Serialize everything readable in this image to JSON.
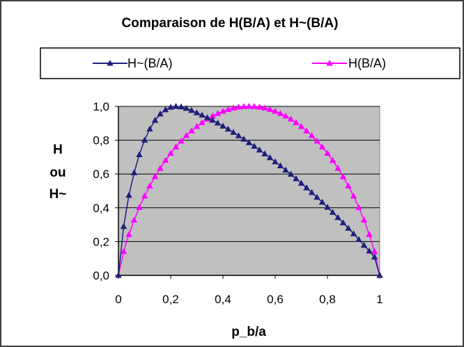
{
  "chart_data": {
    "type": "line",
    "title": "Comparaison de H(B/A) et H~(B/A)",
    "xlabel": "p_b/a",
    "ylabel_lines": [
      "H",
      "ou",
      "H~"
    ],
    "xlim": [
      0,
      1
    ],
    "ylim": [
      0,
      1
    ],
    "x_ticks": [
      "0",
      "0,2",
      "0,4",
      "0,6",
      "0,8",
      "1"
    ],
    "x_tick_values": [
      0,
      0.2,
      0.4,
      0.6,
      0.8,
      1
    ],
    "y_ticks": [
      "0,0",
      "0,2",
      "0,4",
      "0,6",
      "0,8",
      "1,0"
    ],
    "y_tick_values": [
      0,
      0.2,
      0.4,
      0.6,
      0.8,
      1.0
    ],
    "grid": "horizontal",
    "plot_background": "#c0c0c0",
    "legend_position": "top",
    "marker": "triangle",
    "x": [
      0,
      0.02,
      0.04,
      0.06,
      0.08,
      0.1,
      0.12,
      0.14,
      0.16,
      0.18,
      0.2,
      0.22,
      0.24,
      0.26,
      0.28,
      0.3,
      0.32,
      0.34,
      0.36,
      0.38,
      0.4,
      0.42,
      0.44,
      0.46,
      0.48,
      0.5,
      0.52,
      0.54,
      0.56,
      0.58,
      0.6,
      0.62,
      0.64,
      0.66,
      0.68,
      0.7,
      0.72,
      0.74,
      0.76,
      0.78,
      0.8,
      0.82,
      0.84,
      0.86,
      0.88,
      0.9,
      0.92,
      0.94,
      0.96,
      0.98,
      1.0
    ],
    "series": [
      {
        "name": "H~(B/A)",
        "color": "#1f1f7a",
        "values": [
          0,
          0.289,
          0.474,
          0.607,
          0.714,
          0.8,
          0.866,
          0.917,
          0.955,
          0.98,
          0.995,
          1.0,
          0.997,
          0.988,
          0.976,
          0.962,
          0.948,
          0.933,
          0.918,
          0.901,
          0.883,
          0.865,
          0.846,
          0.826,
          0.806,
          0.785,
          0.764,
          0.742,
          0.719,
          0.696,
          0.672,
          0.648,
          0.623,
          0.598,
          0.572,
          0.545,
          0.518,
          0.49,
          0.462,
          0.433,
          0.403,
          0.373,
          0.342,
          0.311,
          0.279,
          0.246,
          0.212,
          0.178,
          0.144,
          0.108,
          0
        ]
      },
      {
        "name": "H(B/A)",
        "color": "#ff00ff",
        "values": [
          0,
          0.141,
          0.242,
          0.327,
          0.402,
          0.469,
          0.529,
          0.584,
          0.634,
          0.68,
          0.722,
          0.76,
          0.795,
          0.827,
          0.855,
          0.881,
          0.904,
          0.925,
          0.943,
          0.958,
          0.971,
          0.982,
          0.99,
          0.996,
          0.999,
          1.0,
          0.999,
          0.996,
          0.99,
          0.982,
          0.971,
          0.958,
          0.943,
          0.925,
          0.904,
          0.881,
          0.855,
          0.827,
          0.795,
          0.76,
          0.722,
          0.68,
          0.634,
          0.584,
          0.529,
          0.469,
          0.402,
          0.327,
          0.242,
          0.141,
          0
        ]
      }
    ]
  }
}
